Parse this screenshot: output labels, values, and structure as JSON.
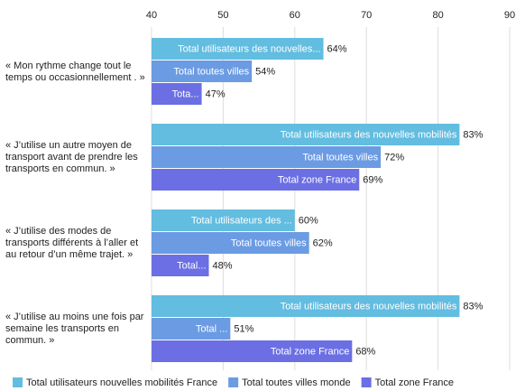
{
  "chart_data": {
    "type": "bar",
    "orientation": "horizontal",
    "categories": [
      "« Mon rythme change tout le temps ou occasionnellement . »",
      "« J’utilise un autre moyen de transport avant de prendre les transports en commun. »",
      "« J’utilise des modes de transports différents à l’aller et au retour d’un même trajet. »",
      "« J’utilise au moins une fois par semaine les transports en commun. »"
    ],
    "series": [
      {
        "name": "Total utilisateurs nouvelles mobilités France",
        "color": "#62bde0",
        "values": [
          64,
          83,
          60,
          83
        ],
        "value_labels": [
          "64%",
          "83%",
          "60%",
          "83%"
        ],
        "bar_labels": [
          "Total utilisateurs des nouvelles...",
          "Total utilisateurs des nouvelles mobilités",
          "Total utilisateurs des ...",
          "Total utilisateurs des nouvelles mobilités"
        ]
      },
      {
        "name": "Total toutes villes monde",
        "color": "#6b9be3",
        "values": [
          54,
          72,
          62,
          51
        ],
        "value_labels": [
          "54%",
          "72%",
          "62%",
          "51%"
        ],
        "bar_labels": [
          "Total toutes villes",
          "Total toutes villes",
          "Total toutes villes",
          "Total ..."
        ]
      },
      {
        "name": "Total zone France",
        "color": "#6b6fe3",
        "values": [
          47,
          69,
          48,
          68
        ],
        "value_labels": [
          "47%",
          "69%",
          "48%",
          "68%"
        ],
        "bar_labels": [
          "Tota...",
          "Total zone France",
          "Total...",
          "Total zone France"
        ]
      }
    ],
    "xlim": [
      40,
      90
    ],
    "xticks": [
      40,
      50,
      60,
      70,
      80,
      90
    ],
    "grid": true,
    "legend": "bottom"
  }
}
